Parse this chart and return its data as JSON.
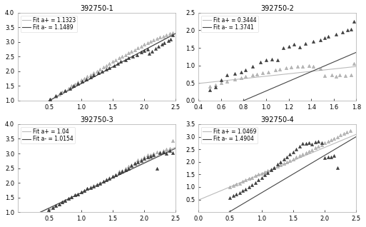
{
  "subplots": [
    {
      "title": "392750-1",
      "legend_plus": "Fit a+ = 1.1323",
      "legend_minus": "Fit a- = 1.1489",
      "xlim": [
        0.0,
        2.5
      ],
      "ylim": [
        1.0,
        4.0
      ],
      "xticks": [
        0.5,
        1.0,
        1.5,
        2.0,
        2.5
      ],
      "yticks": [
        1.0,
        1.5,
        2.0,
        2.5,
        3.0,
        3.5,
        4.0
      ],
      "fit_plus_intercept": 0.454,
      "fit_plus_slope": 1.1323,
      "fit_minus_intercept": 0.426,
      "fit_minus_slope": 1.1489,
      "pts_plus_x": [
        0.51,
        0.6,
        0.65,
        0.7,
        0.75,
        0.8,
        0.85,
        0.9,
        0.95,
        1.0,
        1.05,
        1.1,
        1.15,
        1.2,
        1.25,
        1.3,
        1.35,
        1.4,
        1.45,
        1.5,
        1.55,
        1.6,
        1.65,
        1.7,
        1.75,
        1.8,
        1.85,
        1.9,
        1.95,
        2.0,
        2.05,
        2.1,
        2.15,
        2.2,
        2.25,
        2.3,
        2.35,
        2.4,
        2.45
      ],
      "pts_plus_y": [
        1.05,
        1.15,
        1.22,
        1.28,
        1.35,
        1.42,
        1.5,
        1.57,
        1.63,
        1.7,
        1.75,
        1.82,
        1.88,
        1.95,
        2.0,
        2.08,
        2.14,
        2.2,
        2.27,
        2.33,
        2.38,
        2.45,
        2.52,
        2.56,
        2.62,
        2.68,
        2.72,
        2.8,
        2.86,
        2.92,
        2.97,
        3.02,
        3.07,
        3.12,
        3.17,
        3.2,
        3.23,
        3.28,
        3.32
      ],
      "pts_minus_x": [
        0.51,
        0.6,
        0.68,
        0.75,
        0.82,
        0.88,
        0.95,
        1.02,
        1.08,
        1.15,
        1.2,
        1.27,
        1.33,
        1.4,
        1.45,
        1.52,
        1.58,
        1.63,
        1.7,
        1.75,
        1.82,
        1.88,
        1.95,
        2.0,
        2.05,
        2.08,
        2.12,
        2.18,
        2.22,
        2.28,
        2.32,
        2.38,
        2.42,
        2.45
      ],
      "pts_minus_y": [
        1.05,
        1.18,
        1.26,
        1.35,
        1.42,
        1.52,
        1.58,
        1.66,
        1.74,
        1.8,
        1.87,
        1.94,
        2.0,
        2.07,
        2.12,
        2.2,
        2.26,
        2.33,
        2.38,
        2.45,
        2.5,
        2.56,
        2.65,
        2.7,
        2.75,
        2.6,
        2.68,
        2.78,
        2.84,
        2.92,
        2.98,
        3.05,
        3.1,
        3.25
      ]
    },
    {
      "title": "392750-2",
      "legend_plus": "Fit a+ = 0.3444",
      "legend_minus": "Fit a- = 1.3741",
      "xlim": [
        0.4,
        1.8
      ],
      "ylim": [
        0.0,
        2.5
      ],
      "xticks": [
        0.4,
        0.6,
        0.8,
        1.0,
        1.2,
        1.4,
        1.6,
        1.8
      ],
      "yticks": [
        0.0,
        0.5,
        1.0,
        1.5,
        2.0,
        2.5
      ],
      "fit_plus_intercept": 0.35,
      "fit_plus_slope": 0.3444,
      "fit_minus_intercept": -1.1,
      "fit_minus_slope": 1.3741,
      "pts_plus_x": [
        0.5,
        0.55,
        0.6,
        0.65,
        0.72,
        0.78,
        0.82,
        0.88,
        0.92,
        0.97,
        1.02,
        1.08,
        1.12,
        1.18,
        1.22,
        1.28,
        1.32,
        1.38,
        1.42,
        1.48,
        1.52,
        1.58,
        1.62,
        1.65,
        1.7,
        1.75,
        1.78
      ],
      "pts_plus_y": [
        0.4,
        0.45,
        0.5,
        0.55,
        0.6,
        0.65,
        0.68,
        0.72,
        0.76,
        0.8,
        0.82,
        0.88,
        0.9,
        0.93,
        0.96,
        0.97,
        0.98,
        0.99,
        0.97,
        0.92,
        0.7,
        0.72,
        0.68,
        0.72,
        0.7,
        0.72,
        1.06
      ],
      "pts_minus_x": [
        0.5,
        0.55,
        0.6,
        0.65,
        0.72,
        0.78,
        0.82,
        0.88,
        0.95,
        1.0,
        1.05,
        1.1,
        1.15,
        1.2,
        1.25,
        1.3,
        1.35,
        1.42,
        1.48,
        1.52,
        1.55,
        1.62,
        1.68,
        1.72,
        1.75,
        1.78
      ],
      "pts_minus_y": [
        0.3,
        0.38,
        0.58,
        0.72,
        0.78,
        0.82,
        0.88,
        0.98,
        1.1,
        1.15,
        1.18,
        1.15,
        1.5,
        1.55,
        1.6,
        1.52,
        1.62,
        1.68,
        1.72,
        1.78,
        1.82,
        1.88,
        1.95,
        2.0,
        2.02,
        2.25
      ]
    },
    {
      "title": "392750-3",
      "legend_plus": "Fit a+ = 1.04",
      "legend_minus": "Fit a- = 1.0154",
      "xlim": [
        0.0,
        2.5
      ],
      "ylim": [
        1.0,
        4.0
      ],
      "xticks": [
        0.5,
        1.0,
        1.5,
        2.0,
        2.5
      ],
      "yticks": [
        1.0,
        1.5,
        2.0,
        2.5,
        3.0,
        3.5,
        4.0
      ],
      "fit_plus_intercept": 0.62,
      "fit_plus_slope": 1.04,
      "fit_minus_intercept": 0.64,
      "fit_minus_slope": 1.0154,
      "pts_plus_x": [
        0.5,
        0.55,
        0.6,
        0.65,
        0.7,
        0.75,
        0.8,
        0.85,
        0.9,
        0.95,
        1.0,
        1.05,
        1.1,
        1.15,
        1.2,
        1.25,
        1.3,
        1.35,
        1.4,
        1.45,
        1.5,
        1.55,
        1.6,
        1.65,
        1.7,
        1.75,
        1.8,
        1.85,
        1.9,
        1.95,
        2.0,
        2.05,
        2.1,
        2.15,
        2.2,
        2.25,
        2.3,
        2.35,
        2.4,
        2.45
      ],
      "pts_plus_y": [
        1.12,
        1.17,
        1.22,
        1.28,
        1.35,
        1.4,
        1.46,
        1.52,
        1.58,
        1.62,
        1.68,
        1.74,
        1.8,
        1.85,
        1.9,
        1.96,
        2.0,
        2.05,
        2.12,
        2.18,
        2.23,
        2.28,
        2.38,
        2.42,
        2.48,
        2.56,
        2.62,
        2.68,
        2.78,
        2.8,
        2.88,
        2.95,
        2.95,
        3.0,
        3.05,
        3.05,
        3.1,
        3.15,
        3.18,
        3.45
      ],
      "pts_minus_x": [
        0.48,
        0.55,
        0.6,
        0.65,
        0.7,
        0.75,
        0.8,
        0.85,
        0.9,
        0.95,
        1.0,
        1.05,
        1.1,
        1.15,
        1.2,
        1.25,
        1.3,
        1.35,
        1.4,
        1.45,
        1.5,
        1.55,
        1.6,
        1.65,
        1.7,
        1.75,
        1.8,
        1.85,
        1.9,
        1.95,
        2.0,
        2.05,
        2.1,
        2.15,
        2.2,
        2.25,
        2.3,
        2.35,
        2.4,
        2.45
      ],
      "pts_minus_y": [
        1.08,
        1.15,
        1.22,
        1.28,
        1.34,
        1.4,
        1.46,
        1.52,
        1.58,
        1.62,
        1.68,
        1.74,
        1.8,
        1.83,
        1.88,
        1.93,
        1.98,
        2.05,
        2.1,
        2.15,
        2.22,
        2.28,
        2.35,
        2.4,
        2.45,
        2.5,
        2.58,
        2.65,
        2.72,
        2.75,
        2.82,
        2.88,
        2.9,
        2.95,
        2.48,
        3.02,
        3.05,
        3.0,
        3.1,
        3.02
      ]
    },
    {
      "title": "392750-4",
      "legend_plus": "Fit a+ = 1.0469",
      "legend_minus": "Fit a- = 1.4904",
      "xlim": [
        0.0,
        2.5
      ],
      "ylim": [
        0.0,
        3.5
      ],
      "xticks": [
        0.0,
        0.5,
        1.0,
        1.5,
        2.0,
        2.5
      ],
      "yticks": [
        0.5,
        1.0,
        1.5,
        2.0,
        2.5,
        3.0,
        3.5
      ],
      "fit_plus_intercept": 0.48,
      "fit_plus_slope": 1.0469,
      "fit_minus_intercept": -0.72,
      "fit_minus_slope": 1.4904,
      "pts_plus_x": [
        0.5,
        0.55,
        0.6,
        0.65,
        0.7,
        0.75,
        0.8,
        0.85,
        0.9,
        0.95,
        1.0,
        1.05,
        1.1,
        1.15,
        1.2,
        1.25,
        1.3,
        1.35,
        1.4,
        1.45,
        1.5,
        1.55,
        1.6,
        1.65,
        1.7,
        1.75,
        1.8,
        1.85,
        1.9,
        1.95,
        2.0,
        2.05,
        2.1,
        2.15,
        2.2,
        2.25,
        2.3,
        2.35,
        2.4
      ],
      "pts_plus_y": [
        1.0,
        1.05,
        1.1,
        1.15,
        1.22,
        1.28,
        1.33,
        1.38,
        1.44,
        1.5,
        1.55,
        1.6,
        1.65,
        1.7,
        1.76,
        1.82,
        1.88,
        1.95,
        2.0,
        2.06,
        2.12,
        2.18,
        2.24,
        2.3,
        2.36,
        2.42,
        2.48,
        2.55,
        2.62,
        2.68,
        2.75,
        2.82,
        2.88,
        2.94,
        3.0,
        3.06,
        3.12,
        3.18,
        3.24
      ],
      "pts_minus_x": [
        0.5,
        0.55,
        0.6,
        0.65,
        0.7,
        0.75,
        0.8,
        0.85,
        0.9,
        0.95,
        1.0,
        1.05,
        1.1,
        1.15,
        1.2,
        1.25,
        1.3,
        1.35,
        1.4,
        1.45,
        1.5,
        1.55,
        1.6,
        1.65,
        1.7,
        1.75,
        1.8,
        1.85,
        1.9,
        1.95,
        2.0,
        2.05,
        2.1,
        2.15,
        2.2
      ],
      "pts_minus_y": [
        0.58,
        0.65,
        0.72,
        0.78,
        0.85,
        0.92,
        1.0,
        1.08,
        1.18,
        1.28,
        1.38,
        1.48,
        1.58,
        1.68,
        1.78,
        1.9,
        2.0,
        2.1,
        2.2,
        2.3,
        2.4,
        2.5,
        2.62,
        2.72,
        2.72,
        2.75,
        2.7,
        2.78,
        2.82,
        2.75,
        2.15,
        2.2,
        2.18,
        2.25,
        1.78
      ]
    }
  ],
  "color_plus": "#bbbbbb",
  "color_minus": "#444444",
  "marker_fill_plus": "#bbbbbb",
  "marker_fill_minus": "#333333",
  "markersize": 3,
  "linewidth": 0.8,
  "background_color": "#ffffff",
  "title_fontsize": 7,
  "legend_fontsize": 5.5,
  "tick_fontsize": 6
}
